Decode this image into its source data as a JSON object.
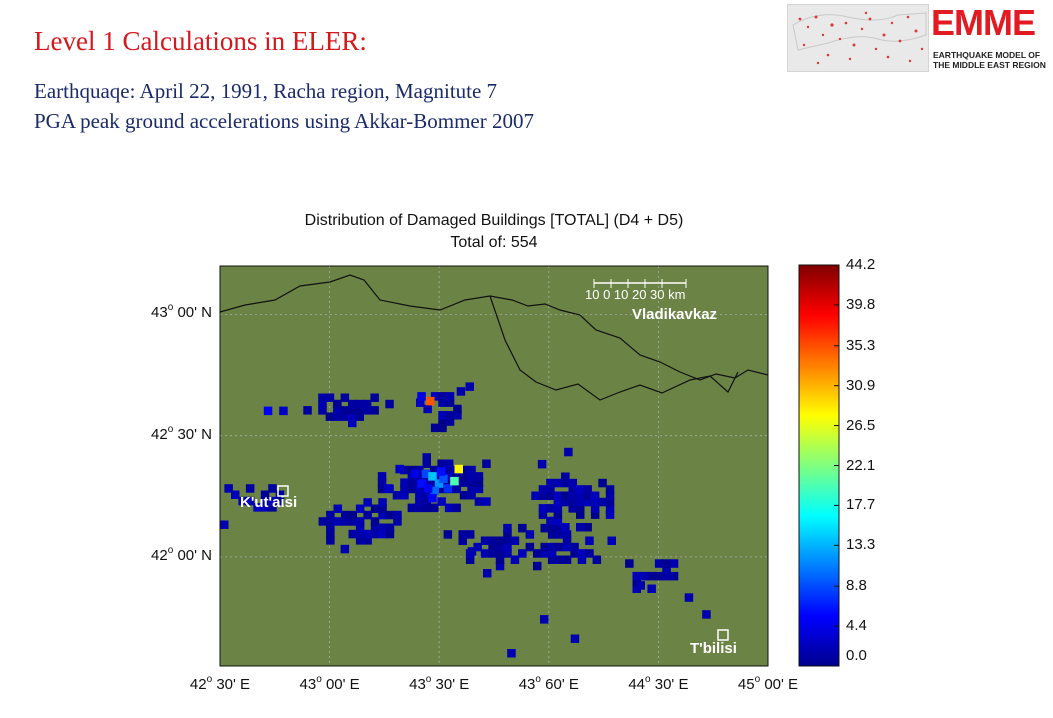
{
  "slide": {
    "title": "Level 1 Calculations in ELER:",
    "subtitle1": "Earthquaqe:  April 22, 1991, Racha region, Magnitute 7",
    "subtitle2": "PGA peak ground accelerations using Akkar-Bommer 2007"
  },
  "logo": {
    "word": "EMME",
    "line1": "EARTHQUAKE MODEL OF",
    "line2": "THE MIDDLE EAST REGION"
  },
  "chart_data": {
    "type": "heatmap",
    "title": "Distribution of Damaged Buildings [TOTAL] (D4 + D5)",
    "subtitle": "Total of: 554",
    "x_ticks": [
      {
        "deg": "42",
        "min": "30' E",
        "value": 42.5
      },
      {
        "deg": "43",
        "min": "00' E",
        "value": 43.0
      },
      {
        "deg": "43",
        "min": "30' E",
        "value": 43.5
      },
      {
        "deg": "43",
        "min": "60' E",
        "value": 44.0
      },
      {
        "deg": "44",
        "min": "30' E",
        "value": 44.5
      },
      {
        "deg": "45",
        "min": "00' E",
        "value": 45.0
      }
    ],
    "y_ticks": [
      {
        "deg": "43",
        "min": "00' N",
        "value": 43.0
      },
      {
        "deg": "42",
        "min": "30' N",
        "value": 42.5
      },
      {
        "deg": "42",
        "min": "00' N",
        "value": 42.0
      }
    ],
    "xlim": [
      42.5,
      45.0
    ],
    "ylim": [
      41.55,
      43.2
    ],
    "colorbar": {
      "range": [
        0.0,
        44.2
      ],
      "ticks": [
        "44.2",
        "39.8",
        "35.3",
        "30.9",
        "26.5",
        "22.1",
        "17.7",
        "13.3",
        "8.8",
        "4.4",
        "0.0"
      ],
      "colormap": "jet"
    },
    "cities": [
      {
        "name": "K'ut'aisi",
        "lon": 42.7,
        "lat": 42.27
      },
      {
        "name": "T'bilisi",
        "lon": 44.8,
        "lat": 41.72
      },
      {
        "name": "Vladikavkaz",
        "lon": 44.68,
        "lat": 43.02
      }
    ],
    "scale_bar_label": "10 0 10 20 30 km",
    "background_color": "#6b8446",
    "grid": true,
    "cluster_regions": [
      {
        "lon0": 42.88,
        "lon1": 43.28,
        "lat0": 42.57,
        "lat1": 42.7,
        "density": 0.55
      },
      {
        "lon0": 43.36,
        "lon1": 43.62,
        "lat0": 42.55,
        "lat1": 42.69,
        "density": 0.5
      },
      {
        "lon0": 43.22,
        "lon1": 43.73,
        "lat0": 42.22,
        "lat1": 42.43,
        "density": 0.85
      },
      {
        "lon0": 42.95,
        "lon1": 43.3,
        "lat0": 42.06,
        "lat1": 42.26,
        "density": 0.5
      },
      {
        "lon0": 43.52,
        "lon1": 44.32,
        "lat0": 41.98,
        "lat1": 42.16,
        "density": 0.6
      },
      {
        "lon0": 43.92,
        "lon1": 44.28,
        "lat0": 42.14,
        "lat1": 42.35,
        "density": 0.72
      },
      {
        "lon0": 44.28,
        "lon1": 44.6,
        "lat0": 41.86,
        "lat1": 42.0,
        "density": 0.35
      },
      {
        "lon0": 42.55,
        "lon1": 42.76,
        "lat0": 42.17,
        "lat1": 42.33,
        "density": 0.35
      }
    ],
    "cells": [
      [
        43.42,
        42.36,
        8.5
      ],
      [
        43.45,
        42.35,
        14
      ],
      [
        43.48,
        42.32,
        12
      ],
      [
        43.5,
        42.34,
        9
      ],
      [
        43.4,
        42.32,
        6
      ],
      [
        43.52,
        42.3,
        7.5
      ],
      [
        43.46,
        42.29,
        10
      ],
      [
        43.43,
        42.3,
        5
      ],
      [
        43.55,
        42.33,
        20
      ],
      [
        43.49,
        42.37,
        6
      ],
      [
        43.37,
        42.36,
        4.5
      ],
      [
        43.45,
        42.26,
        5.5
      ],
      [
        43.57,
        42.38,
        28
      ],
      [
        43.44,
        42.66,
        35
      ],
      [
        43.4,
        42.68,
        4
      ],
      [
        42.7,
        42.62,
        5
      ],
      [
        42.77,
        42.62,
        3
      ],
      [
        43.58,
        42.7,
        2
      ],
      [
        43.62,
        42.72,
        2
      ],
      [
        42.52,
        42.3,
        2
      ],
      [
        42.5,
        42.15,
        2
      ],
      [
        43.96,
        41.76,
        2
      ],
      [
        44.1,
        41.68,
        2
      ],
      [
        44.62,
        41.85,
        2
      ],
      [
        43.81,
        41.62,
        2
      ],
      [
        43.7,
        41.95,
        2
      ],
      [
        43.95,
        42.4,
        2
      ],
      [
        44.07,
        42.45,
        2
      ],
      [
        43.05,
        42.05,
        2
      ],
      [
        44.7,
        41.78,
        2
      ],
      [
        44.4,
        41.9,
        2
      ],
      [
        43.63,
        42.04,
        2
      ],
      [
        43.25,
        42.3,
        3
      ],
      [
        43.3,
        42.38,
        3
      ]
    ]
  }
}
